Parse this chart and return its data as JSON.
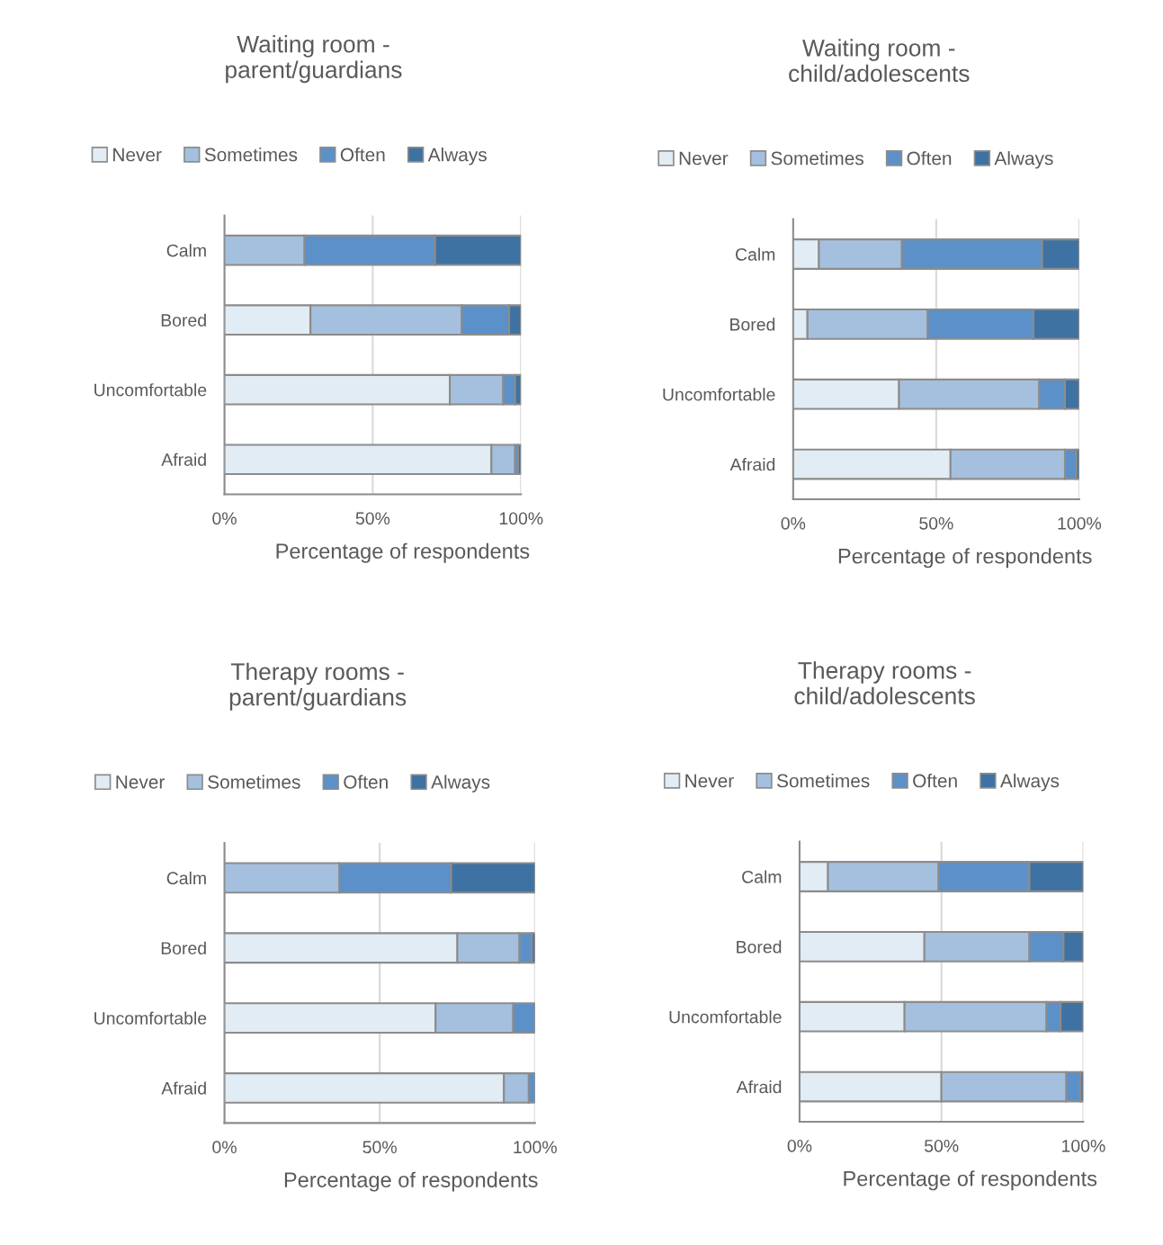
{
  "chart_data": [
    {
      "type": "bar",
      "orientation": "horizontal",
      "stacked": true,
      "title": "Waiting room -\nparent/guardians",
      "xlabel": "Percentage of respondents",
      "categories": [
        "Calm",
        "Bored",
        "Uncomfortable",
        "Afraid"
      ],
      "series": [
        {
          "name": "Never",
          "color": "#e2ecf5",
          "values": [
            null,
            29,
            76,
            90
          ]
        },
        {
          "name": "Sometimes",
          "color": "#a5c0de",
          "values": [
            27,
            51,
            18,
            8
          ]
        },
        {
          "name": "Often",
          "color": "#5b91c8",
          "values": [
            44,
            16,
            4,
            1
          ]
        },
        {
          "name": "Always",
          "color": "#3e72a2",
          "values": [
            29,
            4,
            2,
            1
          ]
        }
      ],
      "xlim": [
        0,
        100
      ],
      "xticks": [
        {
          "value": 0,
          "label": "0%"
        },
        {
          "value": 50,
          "label": "50%"
        },
        {
          "value": 100,
          "label": "100%"
        }
      ],
      "grid": "x",
      "legend": "top"
    },
    {
      "type": "bar",
      "orientation": "horizontal",
      "stacked": true,
      "title": "Waiting room -\nchild/adolescents",
      "xlabel": "Percentage of respondents",
      "categories": [
        "Calm",
        "Bored",
        "Uncomfortable",
        "Afraid"
      ],
      "series": [
        {
          "name": "Never",
          "color": "#e2ecf5",
          "values": [
            9,
            5,
            37,
            55
          ]
        },
        {
          "name": "Sometimes",
          "color": "#a5c0de",
          "values": [
            29,
            42,
            49,
            40
          ]
        },
        {
          "name": "Often",
          "color": "#5b91c8",
          "values": [
            49,
            37,
            9,
            4
          ]
        },
        {
          "name": "Always",
          "color": "#3e72a2",
          "values": [
            13,
            16,
            5,
            1
          ]
        }
      ],
      "xlim": [
        0,
        100
      ],
      "xticks": [
        {
          "value": 0,
          "label": "0%"
        },
        {
          "value": 50,
          "label": "50%"
        },
        {
          "value": 100,
          "label": "100%"
        }
      ],
      "grid": "x",
      "legend": "top"
    },
    {
      "type": "bar",
      "orientation": "horizontal",
      "stacked": true,
      "title": "Therapy rooms -\nparent/guardians",
      "xlabel": "Percentage of respondents",
      "categories": [
        "Calm",
        "Bored",
        "Uncomfortable",
        "Afraid"
      ],
      "series": [
        {
          "name": "Never",
          "color": "#e2ecf5",
          "values": [
            null,
            75,
            68,
            90
          ]
        },
        {
          "name": "Sometimes",
          "color": "#a5c0de",
          "values": [
            37,
            20,
            25,
            8
          ]
        },
        {
          "name": "Often",
          "color": "#5b91c8",
          "values": [
            36,
            4,
            7,
            2
          ]
        },
        {
          "name": "Always",
          "color": "#3e72a2",
          "values": [
            27,
            1,
            0,
            0
          ]
        }
      ],
      "xlim": [
        0,
        100
      ],
      "xticks": [
        {
          "value": 0,
          "label": "0%"
        },
        {
          "value": 50,
          "label": "50%"
        },
        {
          "value": 100,
          "label": "100%"
        }
      ],
      "grid": "x",
      "legend": "top"
    },
    {
      "type": "bar",
      "orientation": "horizontal",
      "stacked": true,
      "title": "Therapy rooms -\nchild/adolescents",
      "xlabel": "Percentage of respondents",
      "categories": [
        "Calm",
        "Bored",
        "Uncomfortable",
        "Afraid"
      ],
      "series": [
        {
          "name": "Never",
          "color": "#e2ecf5",
          "values": [
            10,
            44,
            37,
            50
          ]
        },
        {
          "name": "Sometimes",
          "color": "#a5c0de",
          "values": [
            39,
            37,
            50,
            44
          ]
        },
        {
          "name": "Often",
          "color": "#5b91c8",
          "values": [
            32,
            12,
            5,
            5
          ]
        },
        {
          "name": "Always",
          "color": "#3e72a2",
          "values": [
            19,
            7,
            8,
            1
          ]
        }
      ],
      "xlim": [
        0,
        100
      ],
      "xticks": [
        {
          "value": 0,
          "label": "0%"
        },
        {
          "value": 50,
          "label": "50%"
        },
        {
          "value": 100,
          "label": "100%"
        }
      ],
      "grid": "x",
      "legend": "top"
    }
  ]
}
